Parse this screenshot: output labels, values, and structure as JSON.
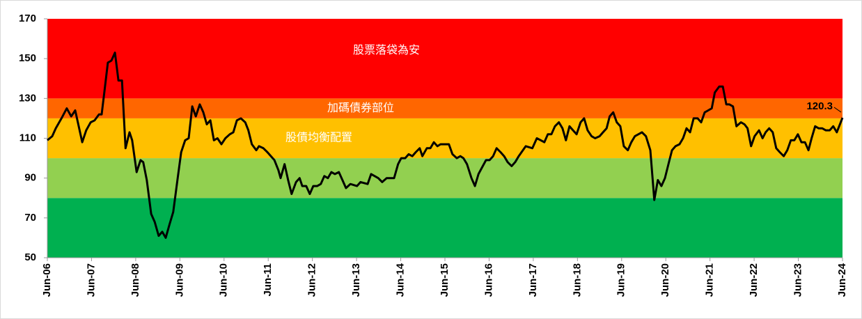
{
  "chart_data": {
    "type": "line",
    "ylim": [
      50,
      170
    ],
    "yticks": [
      50,
      70,
      90,
      110,
      130,
      150,
      170
    ],
    "xlim": [
      2006.5,
      2024.5
    ],
    "xticks": [
      {
        "value": 2006.5,
        "label": "Jun-06"
      },
      {
        "value": 2007.5,
        "label": "Jun-07"
      },
      {
        "value": 2008.5,
        "label": "Jun-08"
      },
      {
        "value": 2009.5,
        "label": "Jun-09"
      },
      {
        "value": 2010.5,
        "label": "Jun-10"
      },
      {
        "value": 2011.5,
        "label": "Jun-11"
      },
      {
        "value": 2012.5,
        "label": "Jun-12"
      },
      {
        "value": 2013.5,
        "label": "Jun-13"
      },
      {
        "value": 2014.5,
        "label": "Jun-14"
      },
      {
        "value": 2015.5,
        "label": "Jun-15"
      },
      {
        "value": 2016.5,
        "label": "Jun-16"
      },
      {
        "value": 2017.5,
        "label": "Jun-17"
      },
      {
        "value": 2018.5,
        "label": "Jun-18"
      },
      {
        "value": 2019.5,
        "label": "Jun-19"
      },
      {
        "value": 2020.5,
        "label": "Jun-20"
      },
      {
        "value": 2021.5,
        "label": "Jun-21"
      },
      {
        "value": 2022.5,
        "label": "Jun-22"
      },
      {
        "value": 2023.5,
        "label": "Jun-23"
      },
      {
        "value": 2024.5,
        "label": "Jun-24"
      }
    ],
    "bands": [
      {
        "from": 50,
        "to": 80,
        "color": "#00b050"
      },
      {
        "from": 80,
        "to": 100,
        "color": "#92d050"
      },
      {
        "from": 100,
        "to": 120,
        "color": "#ffc000",
        "label": "股債均衡配置"
      },
      {
        "from": 120,
        "to": 130,
        "color": "#ff6600",
        "label": "加碼債券部位"
      },
      {
        "from": 130,
        "to": 170,
        "color": "#ff0000",
        "label": "股票落袋為安"
      }
    ],
    "x": [
      2006.5,
      2006.61,
      2006.69,
      2006.82,
      2006.94,
      2007.04,
      2007.13,
      2007.19,
      2007.29,
      2007.38,
      2007.48,
      2007.57,
      2007.67,
      2007.73,
      2007.79,
      2007.87,
      2007.95,
      2008.03,
      2008.11,
      2008.19,
      2008.27,
      2008.36,
      2008.42,
      2008.52,
      2008.61,
      2008.67,
      2008.75,
      2008.85,
      2008.93,
      2009.02,
      2009.1,
      2009.18,
      2009.27,
      2009.35,
      2009.45,
      2009.53,
      2009.62,
      2009.7,
      2009.78,
      2009.86,
      2009.95,
      2010.03,
      2010.11,
      2010.19,
      2010.27,
      2010.35,
      2010.44,
      2010.53,
      2010.63,
      2010.71,
      2010.79,
      2010.88,
      2010.98,
      2011.05,
      2011.13,
      2011.23,
      2011.29,
      2011.39,
      2011.48,
      2011.64,
      2011.73,
      2011.78,
      2011.87,
      2011.95,
      2012.03,
      2012.13,
      2012.21,
      2012.27,
      2012.36,
      2012.44,
      2012.52,
      2012.61,
      2012.69,
      2012.77,
      2012.85,
      2012.93,
      2013.01,
      2013.1,
      2013.18,
      2013.26,
      2013.36,
      2013.51,
      2013.59,
      2013.75,
      2013.83,
      2013.99,
      2014.08,
      2014.18,
      2014.35,
      2014.44,
      2014.51,
      2014.6,
      2014.68,
      2014.76,
      2014.84,
      2014.93,
      2014.99,
      2015.09,
      2015.17,
      2015.25,
      2015.33,
      2015.4,
      2015.59,
      2015.67,
      2015.77,
      2015.85,
      2015.92,
      2016.0,
      2016.1,
      2016.18,
      2016.26,
      2016.43,
      2016.51,
      2016.59,
      2016.67,
      2016.76,
      2016.84,
      2016.92,
      2017.01,
      2017.09,
      2017.17,
      2017.33,
      2017.48,
      2017.58,
      2017.67,
      2017.75,
      2017.83,
      2017.91,
      2017.99,
      2018.08,
      2018.16,
      2018.24,
      2018.32,
      2018.4,
      2018.48,
      2018.57,
      2018.65,
      2018.73,
      2018.82,
      2018.9,
      2019.0,
      2019.08,
      2019.16,
      2019.23,
      2019.31,
      2019.39,
      2019.47,
      2019.55,
      2019.64,
      2019.72,
      2019.8,
      2019.96,
      2020.05,
      2020.15,
      2020.24,
      2020.32,
      2020.4,
      2020.48,
      2020.56,
      2020.64,
      2020.72,
      2020.81,
      2020.89,
      2020.97,
      2021.05,
      2021.13,
      2021.22,
      2021.3,
      2021.38,
      2021.46,
      2021.54,
      2021.61,
      2021.71,
      2021.79,
      2021.87,
      2021.94,
      2022.02,
      2022.1,
      2022.2,
      2022.28,
      2022.35,
      2022.43,
      2022.51,
      2022.61,
      2022.69,
      2022.76,
      2022.84,
      2022.92,
      2023.0,
      2023.08,
      2023.17,
      2023.25,
      2023.33,
      2023.41,
      2023.49,
      2023.57,
      2023.65,
      2023.73,
      2023.8,
      2023.88,
      2023.96,
      2024.04,
      2024.12,
      2024.21,
      2024.29,
      2024.37,
      2024.5
    ],
    "series": [
      {
        "color": "#000000",
        "values": [
          109,
          111,
          115,
          120,
          125,
          121,
          124,
          118,
          108,
          114,
          118,
          119,
          122,
          122,
          133,
          148,
          149,
          153,
          139,
          139,
          105,
          113,
          109,
          93,
          99,
          98,
          89,
          72,
          68,
          61,
          63,
          60,
          67,
          73,
          90,
          103,
          109,
          110,
          126,
          121,
          127,
          123,
          117,
          119,
          109,
          110,
          107,
          110,
          112,
          113,
          119,
          120,
          118,
          114,
          107,
          104,
          106,
          105,
          103,
          99,
          94,
          90,
          97,
          89,
          82,
          88,
          90,
          86,
          86,
          82,
          86,
          86,
          87,
          91,
          90,
          93,
          92,
          93,
          89,
          85,
          87,
          86,
          88,
          87,
          92,
          90,
          88,
          90,
          90,
          97,
          100,
          100,
          102,
          101,
          103,
          105,
          101,
          105,
          105,
          108,
          106,
          107,
          107,
          102,
          100,
          101,
          100,
          97,
          90,
          86,
          92,
          99,
          99,
          101,
          105,
          103,
          101,
          98,
          96,
          98,
          101,
          106,
          105,
          110,
          109,
          108,
          112,
          112,
          116,
          118,
          115,
          109,
          116,
          114,
          112,
          118,
          120,
          114,
          111,
          110,
          111,
          113,
          115,
          121,
          123,
          118,
          116,
          106,
          104,
          108,
          111,
          113,
          111,
          104,
          79,
          89,
          86,
          90,
          97,
          104,
          106,
          107,
          110,
          115,
          113,
          120,
          120,
          118,
          123,
          124,
          125,
          133,
          136,
          136,
          127,
          127,
          126,
          116,
          118,
          117,
          115,
          106,
          111,
          114,
          110,
          113,
          115,
          113,
          105,
          103,
          101,
          104,
          109,
          109,
          112,
          108,
          108,
          104,
          110,
          116,
          115,
          115,
          114,
          114,
          116,
          113,
          120.3
        ]
      }
    ]
  }
}
